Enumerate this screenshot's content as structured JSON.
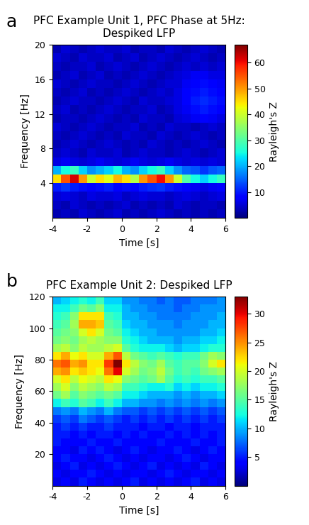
{
  "chart_data": [
    {
      "type": "heatmap",
      "panel": "a",
      "title": "PFC Example Unit 1, PFC Phase at 5Hz:\nDespiked LFP",
      "xlabel": "Time [s]",
      "ylabel": "Frequency [Hz]",
      "x_edges": [
        -4,
        -3.5,
        -3,
        -2.5,
        -2,
        -1.5,
        -1,
        -0.5,
        0,
        0.5,
        1,
        1.5,
        2,
        2.5,
        3,
        3.5,
        4,
        4.5,
        5,
        5.5,
        6
      ],
      "y_edges": [
        0,
        1,
        2,
        3,
        4,
        5,
        6,
        7,
        8,
        9,
        10,
        11,
        12,
        13,
        14,
        15,
        16,
        17,
        18,
        19,
        20
      ],
      "cells": [
        [
          3,
          4,
          3,
          5,
          4,
          3,
          4,
          5,
          3,
          4,
          3,
          4,
          5,
          4,
          3,
          4,
          3,
          4,
          3,
          4
        ],
        [
          4,
          3,
          5,
          4,
          3,
          4,
          3,
          4,
          5,
          3,
          4,
          3,
          4,
          3,
          5,
          4,
          3,
          4,
          4,
          3
        ],
        [
          5,
          6,
          5,
          4,
          6,
          5,
          5,
          6,
          4,
          5,
          6,
          5,
          5,
          4,
          5,
          6,
          5,
          4,
          5,
          6
        ],
        [
          10,
          12,
          10,
          9,
          8,
          9,
          10,
          8,
          9,
          8,
          10,
          11,
          12,
          10,
          9,
          8,
          7,
          6,
          7,
          8
        ],
        [
          45,
          55,
          62,
          50,
          40,
          45,
          42,
          48,
          45,
          38,
          50,
          55,
          60,
          50,
          40,
          30,
          25,
          22,
          25,
          28
        ],
        [
          20,
          25,
          28,
          22,
          18,
          20,
          22,
          25,
          20,
          18,
          22,
          25,
          28,
          22,
          18,
          15,
          14,
          12,
          14,
          15
        ],
        [
          6,
          7,
          6,
          5,
          6,
          7,
          6,
          5,
          6,
          7,
          6,
          5,
          6,
          7,
          6,
          5,
          6,
          5,
          6,
          5
        ],
        [
          4,
          5,
          4,
          3,
          5,
          4,
          4,
          5,
          3,
          4,
          5,
          4,
          4,
          3,
          4,
          5,
          4,
          3,
          4,
          5
        ],
        [
          3,
          4,
          5,
          4,
          3,
          4,
          5,
          4,
          3,
          4,
          3,
          5,
          4,
          3,
          4,
          3,
          4,
          5,
          4,
          3
        ],
        [
          4,
          3,
          4,
          5,
          4,
          3,
          4,
          3,
          5,
          4,
          4,
          3,
          5,
          4,
          3,
          4,
          5,
          4,
          3,
          4
        ],
        [
          5,
          4,
          3,
          4,
          5,
          4,
          3,
          4,
          4,
          5,
          3,
          4,
          3,
          5,
          4,
          4,
          3,
          4,
          5,
          4
        ],
        [
          3,
          4,
          4,
          3,
          4,
          5,
          4,
          3,
          4,
          3,
          5,
          4,
          4,
          3,
          5,
          6,
          7,
          8,
          7,
          6
        ],
        [
          4,
          5,
          3,
          4,
          3,
          4,
          5,
          4,
          3,
          4,
          4,
          5,
          3,
          4,
          6,
          7,
          9,
          10,
          9,
          8
        ],
        [
          3,
          4,
          5,
          4,
          4,
          3,
          4,
          5,
          4,
          3,
          5,
          4,
          4,
          5,
          6,
          8,
          10,
          11,
          10,
          9
        ],
        [
          4,
          3,
          4,
          5,
          3,
          4,
          3,
          4,
          5,
          4,
          3,
          4,
          5,
          4,
          6,
          8,
          9,
          10,
          9,
          8
        ],
        [
          5,
          4,
          3,
          4,
          5,
          4,
          4,
          3,
          4,
          5,
          4,
          3,
          4,
          5,
          5,
          7,
          8,
          9,
          8,
          7
        ],
        [
          3,
          4,
          5,
          3,
          4,
          5,
          3,
          4,
          3,
          4,
          5,
          4,
          3,
          4,
          5,
          6,
          7,
          7,
          6,
          6
        ],
        [
          4,
          3,
          4,
          4,
          5,
          3,
          4,
          5,
          4,
          3,
          4,
          5,
          4,
          3,
          4,
          5,
          4,
          5,
          4,
          5
        ],
        [
          5,
          4,
          3,
          5,
          4,
          4,
          5,
          3,
          4,
          5,
          3,
          4,
          5,
          4,
          3,
          4,
          5,
          4,
          3,
          4
        ],
        [
          3,
          5,
          4,
          3,
          4,
          5,
          4,
          4,
          5,
          3,
          4,
          4,
          3,
          5,
          4,
          3,
          4,
          5,
          4,
          3
        ]
      ],
      "xlim": [
        -4,
        6
      ],
      "ylim": [
        0,
        20
      ],
      "xticks": [
        -4,
        -2,
        0,
        2,
        4,
        6
      ],
      "yticks": [
        4,
        8,
        12,
        16,
        20
      ],
      "colorbar": {
        "label": "Rayleigh's Z",
        "lim": [
          0,
          67
        ],
        "ticks": [
          10,
          20,
          30,
          40,
          50,
          60
        ]
      }
    },
    {
      "type": "heatmap",
      "panel": "b",
      "title": "PFC Example Unit 2: Despiked LFP",
      "xlabel": "Time [s]",
      "ylabel": "Frequency [Hz]",
      "x_edges": [
        -4,
        -3.5,
        -3,
        -2.5,
        -2,
        -1.5,
        -1,
        -0.5,
        0,
        0.5,
        1,
        1.5,
        2,
        2.5,
        3,
        3.5,
        4,
        4.5,
        5,
        5.5,
        6
      ],
      "y_edges": [
        0,
        5,
        10,
        15,
        20,
        25,
        30,
        35,
        40,
        45,
        50,
        55,
        60,
        65,
        70,
        75,
        80,
        85,
        90,
        95,
        100,
        105,
        110,
        115,
        120
      ],
      "cells": [
        [
          3,
          4,
          3,
          5,
          4,
          3,
          4,
          3,
          4,
          5,
          3,
          4,
          3,
          4,
          3,
          4,
          5,
          3,
          4,
          3
        ],
        [
          4,
          3,
          4,
          4,
          5,
          4,
          3,
          4,
          3,
          4,
          4,
          3,
          4,
          5,
          4,
          3,
          4,
          4,
          3,
          4
        ],
        [
          3,
          4,
          5,
          3,
          4,
          3,
          4,
          5,
          4,
          3,
          4,
          5,
          3,
          4,
          3,
          4,
          3,
          5,
          4,
          3
        ],
        [
          4,
          5,
          4,
          4,
          3,
          4,
          5,
          4,
          3,
          4,
          3,
          4,
          4,
          3,
          4,
          5,
          4,
          3,
          4,
          4
        ],
        [
          4,
          4,
          3,
          5,
          4,
          5,
          4,
          3,
          4,
          5,
          4,
          3,
          4,
          4,
          5,
          4,
          3,
          4,
          5,
          4
        ],
        [
          5,
          4,
          4,
          4,
          5,
          4,
          4,
          5,
          4,
          4,
          4,
          4,
          5,
          4,
          4,
          4,
          5,
          4,
          4,
          5
        ],
        [
          5,
          5,
          4,
          5,
          4,
          5,
          5,
          4,
          5,
          4,
          5,
          4,
          4,
          5,
          4,
          5,
          4,
          5,
          4,
          5
        ],
        [
          5,
          6,
          5,
          6,
          5,
          5,
          6,
          5,
          5,
          5,
          4,
          5,
          5,
          4,
          5,
          5,
          4,
          5,
          5,
          5
        ],
        [
          6,
          7,
          6,
          8,
          7,
          6,
          7,
          6,
          5,
          6,
          5,
          6,
          5,
          6,
          5,
          6,
          5,
          6,
          5,
          6
        ],
        [
          8,
          9,
          8,
          10,
          9,
          8,
          10,
          8,
          7,
          7,
          6,
          7,
          6,
          7,
          6,
          7,
          6,
          7,
          6,
          7
        ],
        [
          12,
          14,
          13,
          15,
          14,
          12,
          14,
          12,
          10,
          10,
          9,
          9,
          8,
          9,
          8,
          9,
          8,
          9,
          8,
          9
        ],
        [
          16,
          18,
          15,
          17,
          16,
          15,
          16,
          15,
          12,
          12,
          11,
          10,
          10,
          10,
          9,
          10,
          9,
          10,
          10,
          11
        ],
        [
          18,
          20,
          17,
          19,
          18,
          17,
          19,
          18,
          14,
          14,
          13,
          12,
          12,
          13,
          11,
          12,
          11,
          12,
          12,
          13
        ],
        [
          20,
          22,
          19,
          21,
          20,
          19,
          22,
          21,
          17,
          16,
          15,
          16,
          18,
          15,
          13,
          14,
          13,
          14,
          14,
          15
        ],
        [
          24,
          25,
          22,
          23,
          22,
          21,
          26,
          30,
          20,
          18,
          16,
          17,
          19,
          16,
          14,
          15,
          14,
          16,
          17,
          18
        ],
        [
          26,
          27,
          24,
          25,
          22,
          22,
          28,
          33,
          22,
          19,
          17,
          16,
          18,
          15,
          14,
          15,
          15,
          17,
          20,
          22
        ],
        [
          22,
          24,
          21,
          22,
          20,
          20,
          24,
          27,
          19,
          16,
          15,
          14,
          15,
          14,
          13,
          14,
          14,
          16,
          18,
          17
        ],
        [
          18,
          19,
          17,
          19,
          18,
          18,
          19,
          20,
          15,
          13,
          12,
          12,
          12,
          11,
          10,
          11,
          11,
          12,
          13,
          13
        ],
        [
          16,
          17,
          16,
          18,
          19,
          18,
          17,
          17,
          13,
          12,
          11,
          10,
          10,
          10,
          9,
          10,
          10,
          11,
          11,
          12
        ],
        [
          15,
          16,
          17,
          20,
          22,
          20,
          16,
          15,
          12,
          11,
          10,
          10,
          9,
          9,
          9,
          9,
          9,
          10,
          10,
          11
        ],
        [
          14,
          15,
          18,
          24,
          24,
          23,
          15,
          14,
          11,
          10,
          10,
          9,
          9,
          9,
          8,
          9,
          9,
          9,
          10,
          10
        ],
        [
          13,
          14,
          17,
          22,
          22,
          22,
          14,
          13,
          10,
          10,
          9,
          9,
          8,
          8,
          8,
          8,
          9,
          9,
          9,
          10
        ],
        [
          12,
          12,
          14,
          16,
          15,
          17,
          12,
          12,
          10,
          9,
          9,
          8,
          8,
          8,
          7,
          8,
          8,
          9,
          9,
          9
        ],
        [
          10,
          11,
          12,
          13,
          12,
          14,
          11,
          11,
          9,
          9,
          8,
          8,
          7,
          8,
          7,
          7,
          8,
          8,
          8,
          9
        ]
      ],
      "xlim": [
        -4,
        6
      ],
      "ylim": [
        0,
        120
      ],
      "xticks": [
        -4,
        -2,
        0,
        2,
        4,
        6
      ],
      "yticks": [
        20,
        40,
        60,
        80,
        100,
        120
      ],
      "colorbar": {
        "label": "Rayleigh's Z",
        "lim": [
          0,
          33
        ],
        "ticks": [
          5,
          10,
          15,
          20,
          25,
          30
        ]
      }
    }
  ]
}
